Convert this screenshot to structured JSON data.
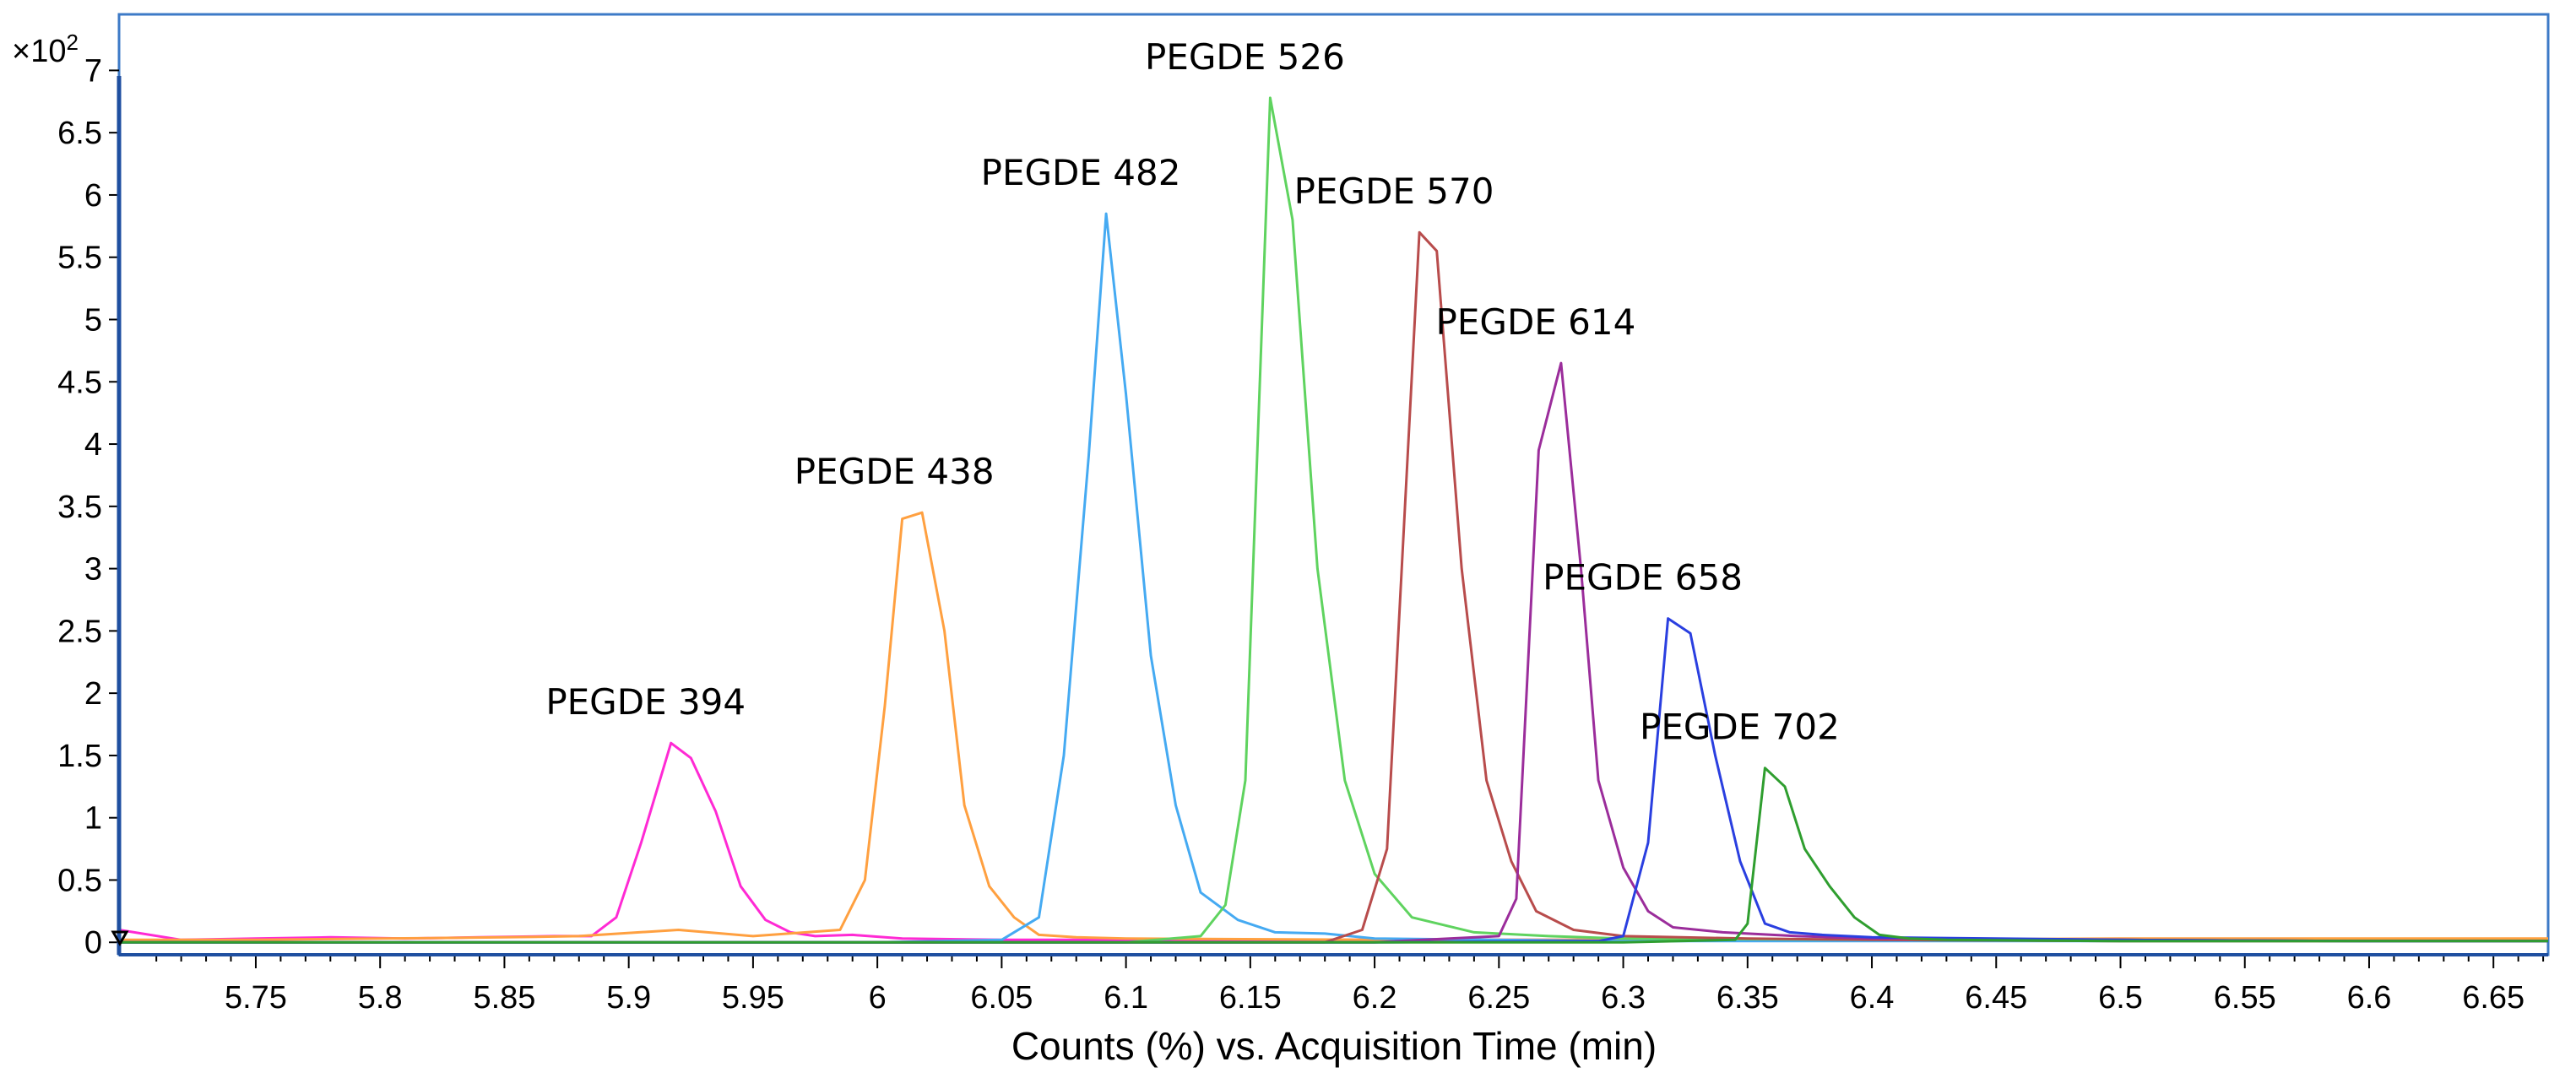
{
  "chart_data": {
    "type": "line",
    "title": "",
    "xlabel": "Counts (%) vs. Acquisition Time (min)",
    "ylabel": "",
    "y_multiplier_base": "×10",
    "y_multiplier_exp": "2",
    "xlim": [
      5.695,
      6.672
    ],
    "ylim": [
      -0.1,
      7.45
    ],
    "x_ticks": [
      "5.75",
      "5.8",
      "5.85",
      "5.9",
      "5.95",
      "6",
      "6.05",
      "6.1",
      "6.15",
      "6.2",
      "6.25",
      "6.3",
      "6.35",
      "6.4",
      "6.45",
      "6.5",
      "6.55",
      "6.6",
      "6.65"
    ],
    "y_ticks": [
      "0",
      "0.5",
      "1",
      "1.5",
      "2",
      "2.5",
      "3",
      "3.5",
      "4",
      "4.5",
      "5",
      "5.5",
      "6",
      "6.5",
      "7"
    ],
    "grid": false,
    "series": [
      {
        "name": "PEGDE 394",
        "label": "PEGDE 394",
        "color": "#ff2ad4",
        "peak_x": 5.917,
        "peak_y": 1.6,
        "x": [
          5.695,
          5.72,
          5.75,
          5.78,
          5.81,
          5.84,
          5.87,
          5.885,
          5.895,
          5.905,
          5.917,
          5.925,
          5.935,
          5.945,
          5.955,
          5.965,
          5.975,
          5.99,
          6.01,
          6.05,
          6.1,
          6.2,
          6.3,
          6.4,
          6.5,
          6.6,
          6.672
        ],
        "y": [
          0.1,
          0.02,
          0.03,
          0.04,
          0.03,
          0.04,
          0.05,
          0.05,
          0.2,
          0.8,
          1.6,
          1.48,
          1.05,
          0.45,
          0.18,
          0.08,
          0.05,
          0.06,
          0.03,
          0.02,
          0.02,
          0.02,
          0.02,
          0.02,
          0.02,
          0.02,
          0.02
        ]
      },
      {
        "name": "PEGDE 438",
        "label": "PEGDE 438",
        "color": "#ffa040",
        "peak_x": 6.017,
        "peak_y": 3.45,
        "x": [
          5.695,
          5.75,
          5.8,
          5.85,
          5.88,
          5.92,
          5.95,
          5.985,
          5.995,
          6.003,
          6.01,
          6.018,
          6.027,
          6.035,
          6.045,
          6.055,
          6.065,
          6.08,
          6.1,
          6.2,
          6.3,
          6.4,
          6.5,
          6.6,
          6.672
        ],
        "y": [
          0.02,
          0.02,
          0.03,
          0.04,
          0.05,
          0.1,
          0.05,
          0.1,
          0.5,
          1.9,
          3.4,
          3.45,
          2.5,
          1.1,
          0.45,
          0.2,
          0.06,
          0.04,
          0.03,
          0.02,
          0.02,
          0.02,
          0.03,
          0.03,
          0.03
        ]
      },
      {
        "name": "PEGDE 482",
        "label": "PEGDE 482",
        "color": "#45aaf2",
        "peak_x": 6.092,
        "peak_y": 5.85,
        "x": [
          5.695,
          5.8,
          5.9,
          6.0,
          6.05,
          6.065,
          6.075,
          6.085,
          6.092,
          6.1,
          6.11,
          6.12,
          6.13,
          6.145,
          6.16,
          6.18,
          6.2,
          6.3,
          6.4,
          6.5,
          6.6,
          6.672
        ],
        "y": [
          0.0,
          0.0,
          0.0,
          0.0,
          0.02,
          0.2,
          1.5,
          3.9,
          5.85,
          4.4,
          2.3,
          1.1,
          0.4,
          0.18,
          0.08,
          0.07,
          0.03,
          0.01,
          0.01,
          0.01,
          0.01,
          0.01
        ]
      },
      {
        "name": "PEGDE 526",
        "label": "PEGDE 526",
        "color": "#5fd35f",
        "peak_x": 6.158,
        "peak_y": 6.78,
        "x": [
          5.695,
          5.9,
          6.0,
          6.1,
          6.13,
          6.14,
          6.148,
          6.158,
          6.167,
          6.177,
          6.188,
          6.2,
          6.215,
          6.24,
          6.27,
          6.3,
          6.4,
          6.5,
          6.6,
          6.672
        ],
        "y": [
          0.0,
          0.0,
          0.0,
          0.0,
          0.05,
          0.3,
          1.3,
          6.78,
          5.8,
          3.0,
          1.3,
          0.55,
          0.2,
          0.08,
          0.05,
          0.03,
          0.02,
          0.01,
          0.01,
          0.01
        ]
      },
      {
        "name": "PEGDE 570",
        "label": "PEGDE 570",
        "color": "#b84c4c",
        "peak_x": 6.218,
        "peak_y": 5.7,
        "x": [
          5.695,
          5.9,
          6.1,
          6.18,
          6.195,
          6.205,
          6.218,
          6.225,
          6.235,
          6.245,
          6.255,
          6.265,
          6.28,
          6.3,
          6.35,
          6.4,
          6.5,
          6.6,
          6.672
        ],
        "y": [
          0.0,
          0.0,
          0.0,
          0.0,
          0.1,
          0.75,
          5.7,
          5.55,
          3.0,
          1.3,
          0.65,
          0.25,
          0.1,
          0.05,
          0.03,
          0.02,
          0.01,
          0.01,
          0.01
        ]
      },
      {
        "name": "PEGDE 614",
        "label": "PEGDE 614",
        "color": "#9b2d9b",
        "peak_x": 6.275,
        "peak_y": 4.65,
        "x": [
          5.695,
          5.9,
          6.1,
          6.2,
          6.25,
          6.257,
          6.266,
          6.275,
          6.283,
          6.29,
          6.3,
          6.31,
          6.32,
          6.34,
          6.37,
          6.4,
          6.5,
          6.6,
          6.672
        ],
        "y": [
          0.0,
          0.0,
          0.0,
          0.0,
          0.05,
          0.35,
          3.95,
          4.65,
          3.0,
          1.3,
          0.6,
          0.25,
          0.12,
          0.08,
          0.05,
          0.03,
          0.02,
          0.01,
          0.01
        ]
      },
      {
        "name": "PEGDE 658",
        "label": "PEGDE 658",
        "color": "#2a3fe0",
        "peak_x": 6.318,
        "peak_y": 2.6,
        "x": [
          5.695,
          6.0,
          6.2,
          6.29,
          6.3,
          6.31,
          6.318,
          6.327,
          6.337,
          6.347,
          6.357,
          6.367,
          6.38,
          6.4,
          6.5,
          6.6,
          6.672
        ],
        "y": [
          0.0,
          0.0,
          0.0,
          0.01,
          0.05,
          0.8,
          2.6,
          2.48,
          1.5,
          0.65,
          0.15,
          0.08,
          0.06,
          0.04,
          0.02,
          0.01,
          0.01
        ]
      },
      {
        "name": "PEGDE 702",
        "label": "PEGDE 702",
        "color": "#2f9e2f",
        "peak_x": 6.357,
        "peak_y": 1.4,
        "x": [
          5.695,
          6.0,
          6.2,
          6.3,
          6.345,
          6.35,
          6.357,
          6.365,
          6.373,
          6.383,
          6.393,
          6.403,
          6.415,
          6.43,
          6.5,
          6.6,
          6.672
        ],
        "y": [
          0.0,
          0.0,
          0.0,
          0.0,
          0.02,
          0.15,
          1.4,
          1.25,
          0.75,
          0.45,
          0.2,
          0.06,
          0.03,
          0.02,
          0.01,
          0.01,
          0.01
        ]
      }
    ]
  }
}
